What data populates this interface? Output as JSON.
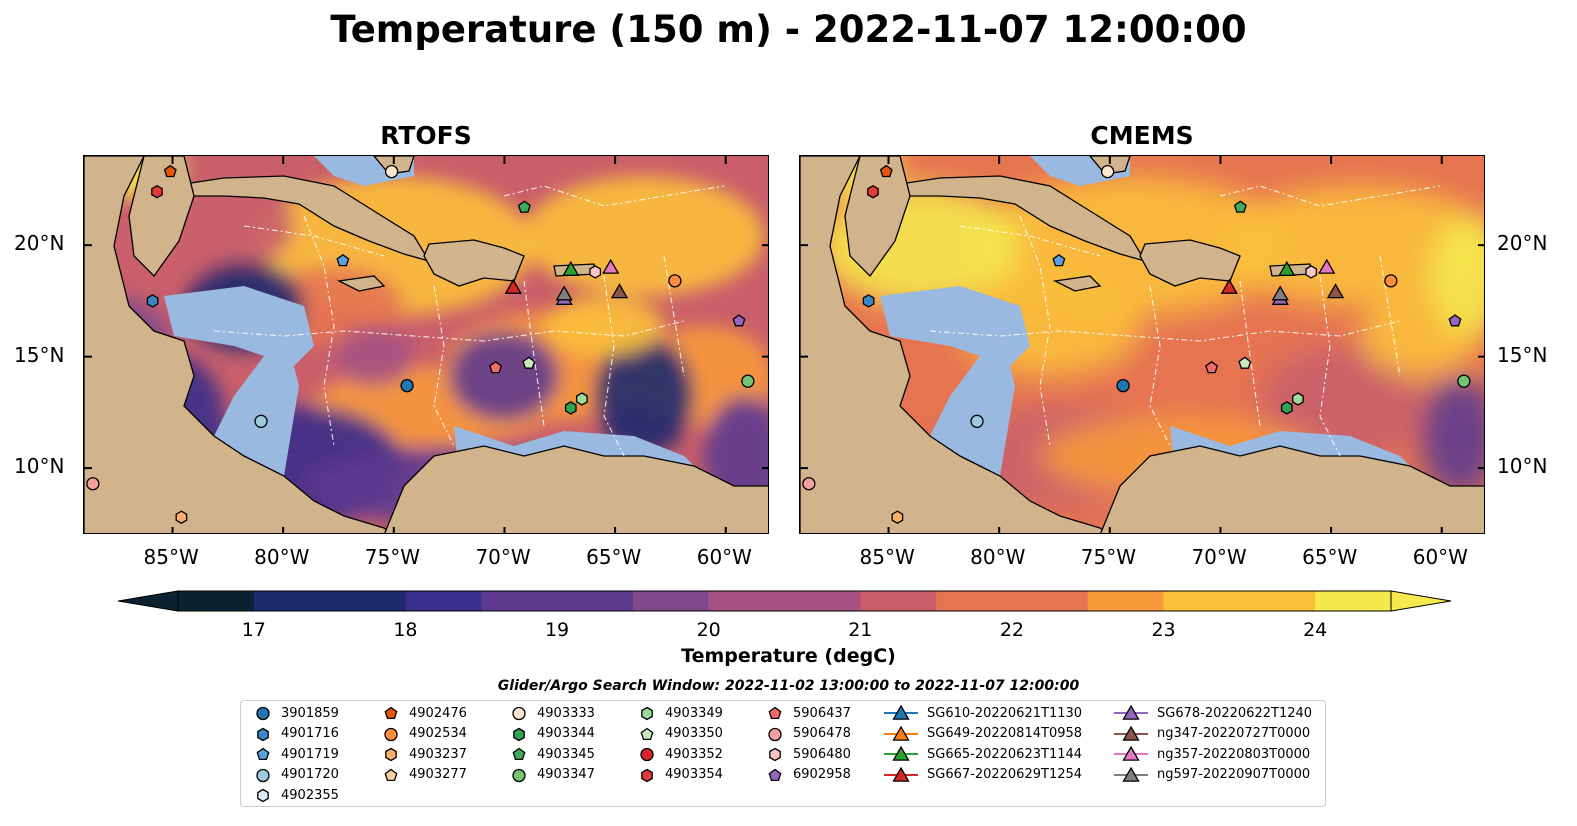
{
  "title": "Temperature (150 m) - 2022-11-07 12:00:00",
  "panels": [
    {
      "title": "RTOFS",
      "variant": "rtofs"
    },
    {
      "title": "CMEMS",
      "variant": "cmems"
    }
  ],
  "map_extent": {
    "lon": [
      -89,
      -58
    ],
    "lat": [
      7,
      24
    ]
  },
  "lon_ticks": [
    "85°W",
    "80°W",
    "75°W",
    "70°W",
    "65°W",
    "60°W"
  ],
  "lat_ticks": [
    "20°N",
    "15°N",
    "10°N"
  ],
  "colors": {
    "ocean_colormap": [
      "#0b2230",
      "#1d2a6e",
      "#3a2f8a",
      "#5e3a8f",
      "#804a8c",
      "#a55282",
      "#c95f6b",
      "#e67451",
      "#f89a3a",
      "#fbc03a",
      "#f5e94e"
    ],
    "land": "#d2b48c",
    "shelf": "#9ab9e0",
    "eez_lines": "#ffffff"
  },
  "colorbar": {
    "label": "Temperature (degC)",
    "min": 16.5,
    "max": 24.5,
    "ticks": [
      "17",
      "18",
      "19",
      "20",
      "21",
      "22",
      "23",
      "24"
    ],
    "extend": "both"
  },
  "legend": {
    "title": "Glider/Argo Search Window: 2022-11-02 13:00:00 to 2022-11-07 12:00:00",
    "items": [
      {
        "label": "3901859",
        "marker": "circle",
        "color": "#1f77b4"
      },
      {
        "label": "4901716",
        "marker": "hexagon",
        "color": "#3a86c8"
      },
      {
        "label": "4901719",
        "marker": "pentagon",
        "color": "#5aa0dc"
      },
      {
        "label": "4901720",
        "marker": "circle",
        "color": "#9ecae1"
      },
      {
        "label": "4902355",
        "marker": "hexagon",
        "color": "#deebf7"
      },
      {
        "label": "4902476",
        "marker": "pentagon",
        "color": "#e6550d"
      },
      {
        "label": "4902534",
        "marker": "circle",
        "color": "#fd8d3c"
      },
      {
        "label": "4903237",
        "marker": "hexagon",
        "color": "#fdae6b"
      },
      {
        "label": "4903277",
        "marker": "pentagon",
        "color": "#fdd0a2"
      },
      {
        "label": "4903333",
        "marker": "circle",
        "color": "#fee6ce"
      },
      {
        "label": "4903344",
        "marker": "hexagon",
        "color": "#31a354"
      },
      {
        "label": "4903345",
        "marker": "pentagon",
        "color": "#41ab5d"
      },
      {
        "label": "4903347",
        "marker": "circle",
        "color": "#74c476"
      },
      {
        "label": "4903349",
        "marker": "hexagon",
        "color": "#a1d99b"
      },
      {
        "label": "4903350",
        "marker": "pentagon",
        "color": "#c7e9c0"
      },
      {
        "label": "4903352",
        "marker": "circle",
        "color": "#d62728"
      },
      {
        "label": "4903354",
        "marker": "hexagon",
        "color": "#e03a3a"
      },
      {
        "label": "5906437",
        "marker": "pentagon",
        "color": "#f06a6a"
      },
      {
        "label": "5906478",
        "marker": "circle",
        "color": "#f4a0a0"
      },
      {
        "label": "5906480",
        "marker": "hexagon",
        "color": "#fcc6c6"
      },
      {
        "label": "6902958",
        "marker": "pentagon",
        "color": "#9467bd"
      },
      {
        "label": "SG610-20220621T1130",
        "marker": "triangle-line",
        "color": "#1f77b4"
      },
      {
        "label": "SG649-20220814T0958",
        "marker": "triangle-line",
        "color": "#ff7f0e"
      },
      {
        "label": "SG665-20220623T1144",
        "marker": "triangle-line",
        "color": "#2ca02c"
      },
      {
        "label": "SG667-20220629T1254",
        "marker": "triangle-line",
        "color": "#d62728"
      },
      {
        "label": "SG678-20220622T1240",
        "marker": "triangle-line",
        "color": "#9467bd"
      },
      {
        "label": "ng347-20220727T0000",
        "marker": "triangle-line",
        "color": "#8c564b"
      },
      {
        "label": "ng357-20220803T0000",
        "marker": "triangle-line",
        "color": "#e377c2"
      },
      {
        "label": "ng597-20220907T0000",
        "marker": "triangle-line",
        "color": "#7f7f7f"
      }
    ]
  },
  "platforms": [
    {
      "id": "4903333",
      "lon": -75.1,
      "lat": 23.3
    },
    {
      "id": "4902476",
      "lon": -85.1,
      "lat": 23.3
    },
    {
      "id": "4903354",
      "lon": -85.7,
      "lat": 22.4
    },
    {
      "id": "4903345",
      "lon": -69.1,
      "lat": 21.7
    },
    {
      "id": "4901719",
      "lon": -77.3,
      "lat": 19.3
    },
    {
      "id": "SG665-20220623T1144",
      "lon": -67.0,
      "lat": 18.9
    },
    {
      "id": "SG667-20220629T1254",
      "lon": -69.6,
      "lat": 18.1
    },
    {
      "id": "SG678-20220622T1240",
      "lon": -67.3,
      "lat": 17.6
    },
    {
      "id": "ng597-20220907T0000",
      "lon": -67.3,
      "lat": 17.8
    },
    {
      "id": "ng347-20220727T0000",
      "lon": -64.8,
      "lat": 17.9
    },
    {
      "id": "ng357-20220803T0000",
      "lon": -65.2,
      "lat": 19.0
    },
    {
      "id": "5906480",
      "lon": -65.9,
      "lat": 18.8
    },
    {
      "id": "4902534",
      "lon": -62.3,
      "lat": 18.4
    },
    {
      "id": "4901716",
      "lon": -85.9,
      "lat": 17.5
    },
    {
      "id": "6902958",
      "lon": -59.4,
      "lat": 16.6
    },
    {
      "id": "5906437",
      "lon": -70.4,
      "lat": 14.5
    },
    {
      "id": "4903350",
      "lon": -68.9,
      "lat": 14.7
    },
    {
      "id": "3901859",
      "lon": -74.4,
      "lat": 13.7
    },
    {
      "id": "4903347",
      "lon": -59.0,
      "lat": 13.9
    },
    {
      "id": "4903349",
      "lon": -66.5,
      "lat": 13.1
    },
    {
      "id": "4903344",
      "lon": -67.0,
      "lat": 12.7
    },
    {
      "id": "4901720",
      "lon": -81.0,
      "lat": 12.1
    },
    {
      "id": "5906478",
      "lon": -88.6,
      "lat": 9.3
    },
    {
      "id": "4903237",
      "lon": -84.6,
      "lat": 7.8
    }
  ]
}
